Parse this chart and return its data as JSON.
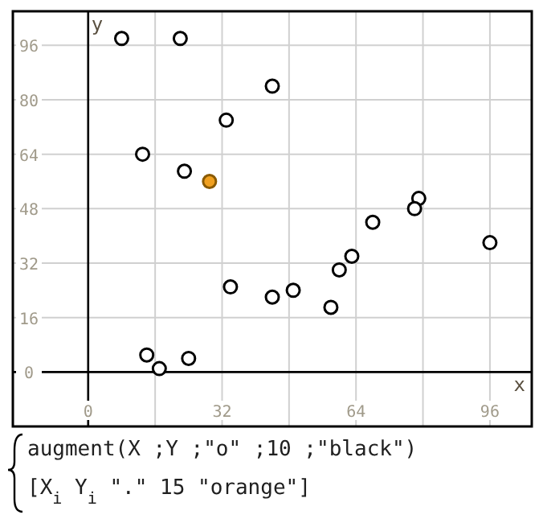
{
  "chart_data": {
    "type": "scatter",
    "xlabel": "x",
    "ylabel": "y",
    "xlim": [
      -18,
      106
    ],
    "ylim": [
      -16,
      106
    ],
    "xticks": [
      0,
      {
        "value": 16,
        "label": null
      },
      32,
      {
        "value": 48,
        "label": null
      },
      64,
      {
        "value": 80,
        "label": null
      },
      96
    ],
    "yticks": [
      0,
      16,
      32,
      48,
      64,
      80,
      96
    ],
    "grid": true,
    "marker": "circle",
    "series": [
      {
        "color": "#000000",
        "x": [
          8,
          22,
          44,
          33,
          13,
          23,
          79,
          78,
          68,
          96,
          63,
          60,
          34,
          49,
          44,
          58,
          14,
          17,
          24
        ],
        "values": [
          98,
          98,
          84,
          74,
          64,
          59,
          51,
          48,
          44,
          38,
          34,
          30,
          25,
          24,
          22,
          19,
          5,
          1,
          4
        ]
      },
      {
        "color": "#f0a020",
        "x": [
          29
        ],
        "values": [
          56
        ]
      }
    ],
    "annotations": [
      "augment(X ;Y ;\"o\" ;10 ;\"black\")",
      "[X$_{i}$ Y$_{i}$ \".\" 15 \"orange\"]"
    ]
  }
}
